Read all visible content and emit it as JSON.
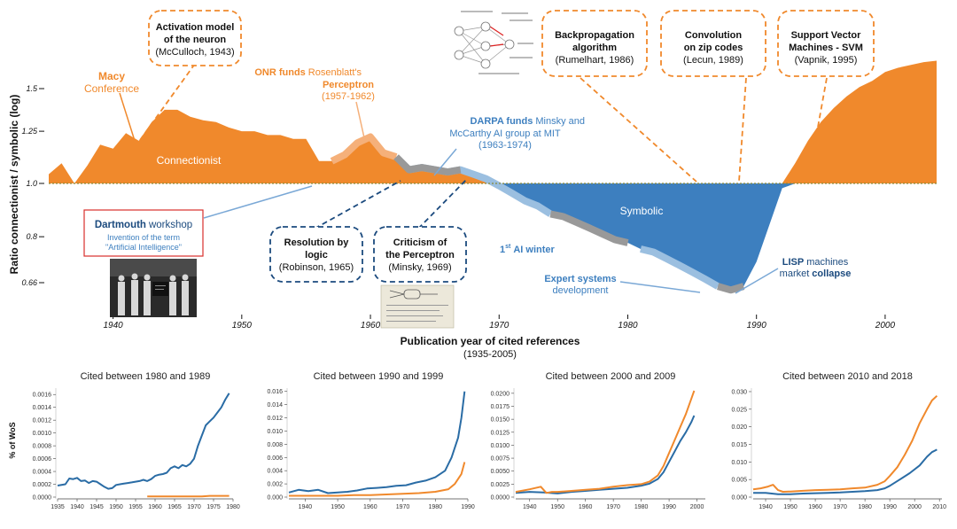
{
  "colors": {
    "orange": "#f0892c",
    "orange_light": "#f5b07a",
    "blue": "#3d7fbf",
    "blue_light": "#9bbfe0",
    "dark_blue": "#1b4a7e",
    "gray": "#999999",
    "red": "#d9302c",
    "baseline": "#8a8a3a"
  },
  "main_chart": {
    "type": "area",
    "title": "Publication year of cited references",
    "subtitle": "(1935-2005)",
    "ylabel": "Ratio connectionist / symbolic (log)",
    "xlim": [
      1935,
      2004
    ],
    "x_ticks": [
      "1940",
      "1950",
      "1960",
      "1970",
      "1980",
      "1990",
      "2000"
    ],
    "y_ticks": [
      "1.5",
      "1.25",
      "1.0",
      "0.8",
      "0.66"
    ],
    "y_tick_values": [
      1.5,
      1.25,
      1.0,
      0.8,
      0.66
    ],
    "x": [
      1935,
      1936,
      1937,
      1938,
      1939,
      1940,
      1941,
      1942,
      1943,
      1944,
      1945,
      1946,
      1947,
      1948,
      1949,
      1950,
      1951,
      1952,
      1953,
      1954,
      1955,
      1956,
      1957,
      1958,
      1959,
      1960,
      1961,
      1962,
      1963,
      1964,
      1965,
      1966,
      1967,
      1968,
      1969,
      1970,
      1971,
      1972,
      1973,
      1974,
      1975,
      1976,
      1977,
      1978,
      1979,
      1980,
      1981,
      1982,
      1983,
      1984,
      1985,
      1986,
      1987,
      1988,
      1989,
      1990,
      1991,
      1992,
      1993,
      1994,
      1995,
      1996,
      1997,
      1998,
      1999,
      2000,
      2001,
      2002,
      2003,
      2004
    ],
    "y": [
      1.04,
      1.09,
      1.0,
      1.08,
      1.18,
      1.16,
      1.24,
      1.2,
      1.3,
      1.37,
      1.37,
      1.33,
      1.31,
      1.3,
      1.27,
      1.25,
      1.25,
      1.23,
      1.23,
      1.21,
      1.21,
      1.1,
      1.1,
      1.13,
      1.19,
      1.22,
      1.14,
      1.12,
      1.06,
      1.07,
      1.06,
      1.05,
      1.06,
      1.04,
      1.02,
      0.99,
      0.96,
      0.93,
      0.91,
      0.88,
      0.87,
      0.85,
      0.83,
      0.81,
      0.79,
      0.78,
      0.76,
      0.75,
      0.73,
      0.71,
      0.69,
      0.67,
      0.65,
      0.64,
      0.65,
      0.72,
      0.84,
      0.98,
      1.09,
      1.2,
      1.3,
      1.38,
      1.45,
      1.51,
      1.55,
      1.61,
      1.64,
      1.66,
      1.68,
      1.69
    ],
    "region_labels": {
      "connectionist": "Connectionist",
      "symbolic": "Symbolic"
    },
    "annotations": {
      "macy_bold": "Macy",
      "macy_text": "Conference",
      "mcculloch_title": "Activation model",
      "mcculloch_title2": "of the neuron",
      "mcculloch_sub": "(McCulloch, 1943)",
      "onr_bold": "ONR funds",
      "onr_text": "Rosenblatt's",
      "onr_bold2": "Perceptron",
      "onr_sub": "(1957-1962)",
      "darpa_bold": "DARPA funds",
      "darpa_text": "Minsky and",
      "darpa_text2": "McCarthy AI group at MIT",
      "darpa_sub": "(1963-1974)",
      "backprop_title": "Backpropagation",
      "backprop_title2": "algorithm",
      "backprop_sub": "(Rumelhart, 1986)",
      "conv_title": "Convolution",
      "conv_title2": "on zip codes",
      "conv_sub": "(Lecun, 1989)",
      "svm_title": "Support Vector",
      "svm_title2": "Machines - SVM",
      "svm_sub": "(Vapnik, 1995)",
      "dartmouth_bold": "Dartmouth",
      "dartmouth_text": "workshop",
      "dartmouth_sub": "Invention of the term",
      "dartmouth_sub2": "\"Artificial Intelligence\"",
      "resolution_title": "Resolution by",
      "resolution_title2": "logic",
      "resolution_sub": "(Robinson, 1965)",
      "criticism_title": "Criticism of",
      "criticism_title2": "the Perceptron",
      "criticism_sub": "(Minsky, 1969)",
      "ai_winter": "1",
      "ai_winter_sup": "st",
      "ai_winter_text": "AI winter",
      "expert_bold": "Expert systems",
      "expert_text": "development",
      "lisp_bold": "LISP",
      "lisp_text": "machines",
      "lisp_text2": "market",
      "lisp_bold2": "collapse"
    }
  },
  "chart_data": [
    {
      "type": "line",
      "title": "Cited between 1980 and 1989",
      "ylabel": "% of WoS",
      "xlim": [
        1935,
        1980
      ],
      "ylim": [
        0,
        0.0017
      ],
      "x_ticks": [
        1935,
        1940,
        1945,
        1950,
        1955,
        1960,
        1965,
        1970,
        1975,
        1980
      ],
      "y_ticks": [
        "0.0000",
        "0.0002",
        "0.0004",
        "0.0006",
        "0.0008",
        "0.0010",
        "0.0012",
        "0.0014",
        "0.0016"
      ],
      "y_tick_values": [
        0,
        0.0002,
        0.0004,
        0.0006,
        0.0008,
        0.001,
        0.0012,
        0.0014,
        0.0016
      ],
      "series": [
        {
          "name": "symbolic",
          "color": "#2a6ca5",
          "x": [
            1935,
            1937,
            1938,
            1939,
            1940,
            1941,
            1942,
            1943,
            1944,
            1945,
            1946,
            1947,
            1948,
            1949,
            1950,
            1951,
            1952,
            1953,
            1954,
            1955,
            1956,
            1957,
            1958,
            1959,
            1960,
            1961,
            1962,
            1963,
            1964,
            1965,
            1966,
            1967,
            1968,
            1969,
            1970,
            1971,
            1972,
            1973,
            1974,
            1975,
            1976,
            1977,
            1978,
            1979
          ],
          "values": [
            0.00018,
            0.0002,
            0.00029,
            0.00028,
            0.0003,
            0.00025,
            0.00026,
            0.00022,
            0.00025,
            0.00024,
            0.0002,
            0.00016,
            0.00013,
            0.00014,
            0.00019,
            0.0002,
            0.00021,
            0.00022,
            0.00023,
            0.00024,
            0.00025,
            0.00027,
            0.00025,
            0.00028,
            0.00033,
            0.00035,
            0.00036,
            0.00038,
            0.00045,
            0.00048,
            0.00045,
            0.0005,
            0.00048,
            0.00052,
            0.0006,
            0.0008,
            0.00096,
            0.00112,
            0.00118,
            0.00124,
            0.00132,
            0.0014,
            0.00152,
            0.00162
          ]
        },
        {
          "name": "connectionist",
          "color": "#f0892c",
          "x": [
            1958,
            1960,
            1962,
            1964,
            1966,
            1968,
            1970,
            1972,
            1974,
            1976,
            1978,
            1979
          ],
          "values": [
            1e-05,
            1e-05,
            1e-05,
            1e-05,
            1e-05,
            1e-05,
            1e-05,
            1e-05,
            2e-05,
            2e-05,
            2e-05,
            2e-05
          ]
        }
      ]
    },
    {
      "type": "line",
      "title": "Cited between 1990 and 1999",
      "xlim": [
        1935,
        1990
      ],
      "ylim": [
        0,
        0.0165
      ],
      "x_ticks": [
        1940,
        1950,
        1960,
        1970,
        1980,
        1990
      ],
      "y_ticks": [
        "0.000",
        "0.002",
        "0.004",
        "0.006",
        "0.008",
        "0.010",
        "0.012",
        "0.014",
        "0.016"
      ],
      "y_tick_values": [
        0,
        0.002,
        0.004,
        0.006,
        0.008,
        0.01,
        0.012,
        0.014,
        0.016
      ],
      "series": [
        {
          "name": "symbolic",
          "color": "#2a6ca5",
          "x": [
            1935,
            1938,
            1941,
            1944,
            1947,
            1950,
            1953,
            1956,
            1959,
            1962,
            1965,
            1968,
            1971,
            1974,
            1977,
            1980,
            1983,
            1985,
            1987,
            1988,
            1989
          ],
          "values": [
            0.0007,
            0.0011,
            0.0009,
            0.0011,
            0.0006,
            0.0007,
            0.0008,
            0.001,
            0.0013,
            0.0014,
            0.0015,
            0.0017,
            0.0018,
            0.0022,
            0.0025,
            0.003,
            0.004,
            0.006,
            0.009,
            0.012,
            0.016
          ]
        },
        {
          "name": "connectionist",
          "color": "#f0892c",
          "x": [
            1935,
            1940,
            1945,
            1950,
            1955,
            1960,
            1965,
            1970,
            1975,
            1980,
            1984,
            1986,
            1988,
            1989
          ],
          "values": [
            0.0002,
            0.0002,
            0.0002,
            0.0002,
            0.0003,
            0.0003,
            0.0004,
            0.0005,
            0.0006,
            0.0008,
            0.0012,
            0.002,
            0.0035,
            0.0053
          ]
        }
      ]
    },
    {
      "type": "line",
      "title": "Cited between 2000 and 2009",
      "xlim": [
        1935,
        2003
      ],
      "ylim": [
        0,
        0.021
      ],
      "x_ticks": [
        1940,
        1950,
        1960,
        1970,
        1980,
        1990,
        2000
      ],
      "y_ticks": [
        "0.0000",
        "0.0025",
        "0.0050",
        "0.0075",
        "0.0100",
        "0.0125",
        "0.0150",
        "0.0175",
        "0.0200"
      ],
      "y_tick_values": [
        0,
        0.0025,
        0.005,
        0.0075,
        0.01,
        0.0125,
        0.015,
        0.0175,
        0.02
      ],
      "series": [
        {
          "name": "symbolic",
          "color": "#2a6ca5",
          "x": [
            1935,
            1940,
            1945,
            1950,
            1955,
            1960,
            1965,
            1970,
            1975,
            1980,
            1983,
            1986,
            1988,
            1990,
            1992,
            1994,
            1996,
            1998,
            1999
          ],
          "values": [
            0.0008,
            0.001,
            0.0009,
            0.0007,
            0.001,
            0.0012,
            0.0014,
            0.0016,
            0.0018,
            0.0022,
            0.0026,
            0.0035,
            0.0048,
            0.0068,
            0.0088,
            0.0108,
            0.0125,
            0.0145,
            0.0157
          ]
        },
        {
          "name": "connectionist",
          "color": "#f0892c",
          "x": [
            1935,
            1940,
            1944,
            1946,
            1948,
            1950,
            1955,
            1960,
            1965,
            1970,
            1975,
            1980,
            1983,
            1986,
            1988,
            1990,
            1992,
            1994,
            1996,
            1998,
            1999
          ],
          "values": [
            0.001,
            0.0015,
            0.002,
            0.0008,
            0.001,
            0.001,
            0.0012,
            0.0014,
            0.0016,
            0.002,
            0.0023,
            0.0025,
            0.003,
            0.0042,
            0.006,
            0.0085,
            0.011,
            0.0135,
            0.016,
            0.019,
            0.0205
          ]
        }
      ]
    },
    {
      "type": "line",
      "title": "Cited between 2010 and 2018",
      "xlim": [
        1935,
        2011
      ],
      "ylim": [
        0,
        0.031
      ],
      "x_ticks": [
        1940,
        1950,
        1960,
        1970,
        1980,
        1990,
        2000,
        2010
      ],
      "y_ticks": [
        "0.000",
        "0.005",
        "0.010",
        "0.015",
        "0.020",
        "0.025",
        "0.030"
      ],
      "y_tick_values": [
        0,
        0.005,
        0.01,
        0.015,
        0.02,
        0.025,
        0.03
      ],
      "series": [
        {
          "name": "symbolic",
          "color": "#2a6ca5",
          "x": [
            1935,
            1940,
            1945,
            1950,
            1955,
            1960,
            1965,
            1970,
            1975,
            1980,
            1985,
            1988,
            1990,
            1994,
            1998,
            2002,
            2005,
            2007,
            2009
          ],
          "values": [
            0.0012,
            0.0012,
            0.0008,
            0.0008,
            0.001,
            0.0011,
            0.0012,
            0.0013,
            0.0015,
            0.0017,
            0.002,
            0.0025,
            0.0032,
            0.005,
            0.0068,
            0.009,
            0.0115,
            0.0128,
            0.0135
          ]
        },
        {
          "name": "connectionist",
          "color": "#f0892c",
          "x": [
            1935,
            1938,
            1941,
            1943,
            1945,
            1947,
            1950,
            1955,
            1960,
            1965,
            1970,
            1975,
            1980,
            1985,
            1988,
            1990,
            1993,
            1996,
            1999,
            2002,
            2005,
            2007,
            2009
          ],
          "values": [
            0.0022,
            0.0025,
            0.003,
            0.0035,
            0.002,
            0.0015,
            0.0016,
            0.0018,
            0.002,
            0.0021,
            0.0022,
            0.0025,
            0.0027,
            0.0035,
            0.0045,
            0.006,
            0.0085,
            0.012,
            0.016,
            0.021,
            0.025,
            0.0275,
            0.0288
          ]
        }
      ]
    }
  ]
}
